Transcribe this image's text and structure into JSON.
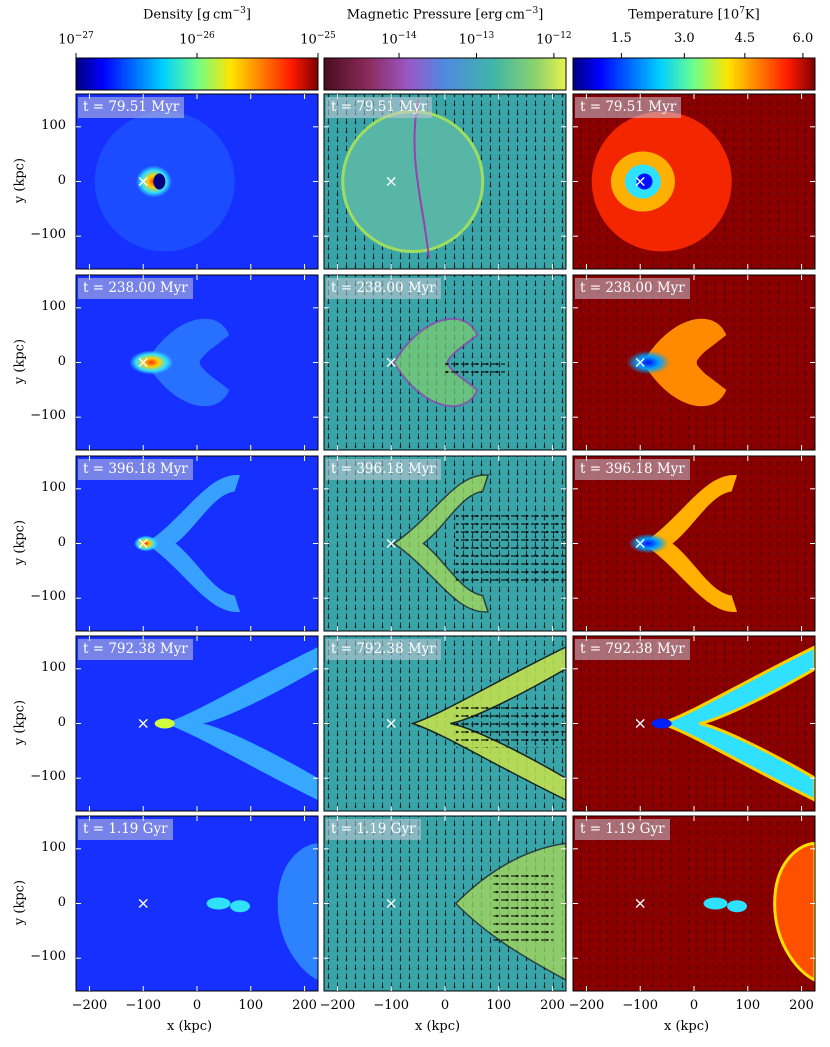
{
  "figure": {
    "colorbars": [
      {
        "title": "Density [g cm$^{-3}$]",
        "title_text": "Density [g cm",
        "title_sup": "−3",
        "title_end": "]",
        "cmap": "jet",
        "scale": "log",
        "ticks": [
          {
            "base": "10",
            "exp": "−27"
          },
          {
            "base": "10",
            "exp": "−26"
          },
          {
            "base": "10",
            "exp": "−25"
          }
        ]
      },
      {
        "title_text": "Magnetic Pressure [erg cm",
        "title_sup": "−3",
        "title_end": "]",
        "cmap": "viridis-like",
        "scale": "log",
        "ticks": [
          {
            "base": "10",
            "exp": "−14"
          },
          {
            "base": "10",
            "exp": "−13"
          },
          {
            "base": "10",
            "exp": "−12"
          }
        ]
      },
      {
        "title_text": "Temperature [10",
        "title_sup": "7",
        "title_end": "K]",
        "cmap": "jet",
        "scale": "linear",
        "ticks": [
          {
            "base": "1.5",
            "exp": ""
          },
          {
            "base": "3.0",
            "exp": ""
          },
          {
            "base": "4.5",
            "exp": ""
          },
          {
            "base": "6.0",
            "exp": ""
          }
        ]
      }
    ],
    "times": [
      "t = 79.51 Myr",
      "t = 238.00 Myr",
      "t = 396.18 Myr",
      "t = 792.38 Myr",
      "t = 1.19 Gyr"
    ],
    "x_ticks": [
      "−200",
      "−100",
      "0",
      "100",
      "200"
    ],
    "y_ticks": [
      "100",
      "0",
      "−100"
    ],
    "x_axis_label": "x  (kpc)",
    "y_axis_label": "y  (kpc)",
    "marker": "×",
    "colors": {
      "density_bg": "#1530ff",
      "mag_bg": "#3aa5a8",
      "temp_bg": "#8a0000"
    }
  }
}
